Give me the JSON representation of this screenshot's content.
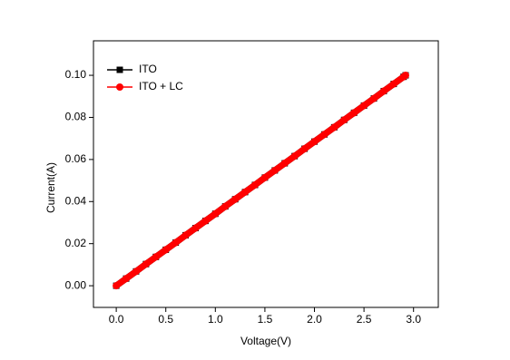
{
  "chart_data": {
    "type": "line",
    "xlabel": "Voltage(V)",
    "ylabel": "Current(A)",
    "x": [
      0,
      0.1,
      0.2,
      0.3,
      0.4,
      0.5,
      0.6,
      0.7,
      0.8,
      0.9,
      1.0,
      1.1,
      1.2,
      1.3,
      1.4,
      1.5,
      1.6,
      1.7,
      1.8,
      1.9,
      2.0,
      2.1,
      2.2,
      2.3,
      2.4,
      2.5,
      2.6,
      2.7,
      2.8,
      2.9,
      2.92
    ],
    "series": [
      {
        "name": "ITO",
        "color": "#000000",
        "marker": "square",
        "values": [
          0,
          0.0034,
          0.0068,
          0.0103,
          0.0137,
          0.0171,
          0.0205,
          0.024,
          0.0274,
          0.0308,
          0.0342,
          0.0377,
          0.0411,
          0.0445,
          0.0479,
          0.0514,
          0.0548,
          0.0582,
          0.0616,
          0.0651,
          0.0685,
          0.0719,
          0.0753,
          0.0788,
          0.0822,
          0.0856,
          0.089,
          0.0925,
          0.0959,
          0.0993,
          0.1
        ]
      },
      {
        "name": "ITO + LC",
        "color": "#ff0000",
        "marker": "circle",
        "values": [
          0,
          0.0034,
          0.0068,
          0.0103,
          0.0137,
          0.0171,
          0.0205,
          0.024,
          0.0274,
          0.0308,
          0.0342,
          0.0377,
          0.0411,
          0.0445,
          0.0479,
          0.0514,
          0.0548,
          0.0582,
          0.0616,
          0.0651,
          0.0685,
          0.0719,
          0.0753,
          0.0788,
          0.0822,
          0.0856,
          0.089,
          0.0925,
          0.0959,
          0.0993,
          0.1
        ]
      }
    ],
    "xlim": [
      -0.23,
      3.25
    ],
    "xticks": [
      {
        "value": 0,
        "label": "0.0"
      },
      0.5,
      {
        "value": 1,
        "label": "1.0"
      },
      1.5,
      {
        "value": 2,
        "label": "2.0"
      },
      2.5,
      {
        "value": 3,
        "label": "3.0"
      }
    ],
    "ylim": [
      -0.0103,
      0.1164
    ],
    "yticks": [
      {
        "value": 0,
        "label": "0.00"
      },
      {
        "value": 0.02,
        "label": "0.02"
      },
      {
        "value": 0.04,
        "label": "0.04"
      },
      {
        "value": 0.06,
        "label": "0.06"
      },
      {
        "value": 0.08,
        "label": "0.08"
      },
      {
        "value": 0.1,
        "label": "0.10"
      }
    ],
    "grid": false,
    "legend": "upper left"
  }
}
